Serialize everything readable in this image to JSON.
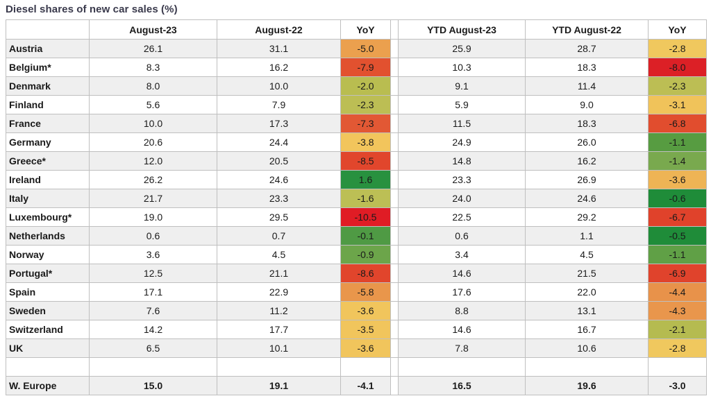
{
  "title": "Diesel shares of new car sales (%)",
  "colors": {
    "title_text": "#3a3a4c",
    "grid_line": "#bfbfbf",
    "band_fill": "#efefef",
    "cell_text": "#1a1a1a"
  },
  "chart_data": {
    "type": "table",
    "title": "Diesel shares of new car sales (%)",
    "columns": [
      "",
      "August-23",
      "August-22",
      "YoY",
      "YTD August-23",
      "YTD August-22",
      "YoY"
    ],
    "rows": [
      {
        "country": "Austria",
        "aug23": 26.1,
        "aug22": 31.1,
        "yoy1": -5.0,
        "yoy1_color": "#eba04e",
        "ytd23": 25.9,
        "ytd22": 28.7,
        "yoy2": -2.8,
        "yoy2_color": "#f0c85e"
      },
      {
        "country": "Belgium*",
        "aug23": 8.3,
        "aug22": 16.2,
        "yoy1": -7.9,
        "yoy1_color": "#e2512f",
        "ytd23": 10.3,
        "ytd22": 18.3,
        "yoy2": -8.0,
        "yoy2_color": "#dc2026"
      },
      {
        "country": "Denmark",
        "aug23": 8.0,
        "aug22": 10.0,
        "yoy1": -2.0,
        "yoy1_color": "#b9bd50",
        "ytd23": 9.1,
        "ytd22": 11.4,
        "yoy2": -2.3,
        "yoy2_color": "#bcbe54"
      },
      {
        "country": "Finland",
        "aug23": 5.6,
        "aug22": 7.9,
        "yoy1": -2.3,
        "yoy1_color": "#bcbe54",
        "ytd23": 5.9,
        "ytd22": 9.0,
        "yoy2": -3.1,
        "yoy2_color": "#f0c35a"
      },
      {
        "country": "France",
        "aug23": 10.0,
        "aug22": 17.3,
        "yoy1": -7.3,
        "yoy1_color": "#e25834",
        "ytd23": 11.5,
        "ytd22": 18.3,
        "yoy2": -6.8,
        "yoy2_color": "#e14d2e"
      },
      {
        "country": "Germany",
        "aug23": 20.6,
        "aug22": 24.4,
        "yoy1": -3.8,
        "yoy1_color": "#f2c55c",
        "ytd23": 24.9,
        "ytd22": 26.0,
        "yoy2": -1.1,
        "yoy2_color": "#579c41"
      },
      {
        "country": "Greece*",
        "aug23": 12.0,
        "aug22": 20.5,
        "yoy1": -8.5,
        "yoy1_color": "#e1462c",
        "ytd23": 14.8,
        "ytd22": 16.2,
        "yoy2": -1.4,
        "yoy2_color": "#79a94e"
      },
      {
        "country": "Ireland",
        "aug23": 26.2,
        "aug22": 24.6,
        "yoy1": 1.6,
        "yoy1_color": "#28913f",
        "ytd23": 23.3,
        "ytd22": 26.9,
        "yoy2": -3.6,
        "yoy2_color": "#eeb455"
      },
      {
        "country": "Italy",
        "aug23": 21.7,
        "aug22": 23.3,
        "yoy1": -1.6,
        "yoy1_color": "#bcbf55",
        "ytd23": 24.0,
        "ytd22": 24.6,
        "yoy2": -0.6,
        "yoy2_color": "#1f8c39"
      },
      {
        "country": "Luxembourg*",
        "aug23": 19.0,
        "aug22": 29.5,
        "yoy1": -10.5,
        "yoy1_color": "#e01c25",
        "ytd23": 22.5,
        "ytd22": 29.2,
        "yoy2": -6.7,
        "yoy2_color": "#e0422b"
      },
      {
        "country": "Netherlands",
        "aug23": 0.6,
        "aug22": 0.7,
        "yoy1": -0.1,
        "yoy1_color": "#4f9a44",
        "ytd23": 0.6,
        "ytd22": 1.1,
        "yoy2": -0.5,
        "yoy2_color": "#1f8c39"
      },
      {
        "country": "Norway",
        "aug23": 3.6,
        "aug22": 4.5,
        "yoy1": -0.9,
        "yoy1_color": "#6ca54a",
        "ytd23": 3.4,
        "ytd22": 4.5,
        "yoy2": -1.1,
        "yoy2_color": "#60a046"
      },
      {
        "country": "Portugal*",
        "aug23": 12.5,
        "aug22": 21.1,
        "yoy1": -8.6,
        "yoy1_color": "#e1452c",
        "ytd23": 14.6,
        "ytd22": 21.5,
        "yoy2": -6.9,
        "yoy2_color": "#e0432c"
      },
      {
        "country": "Spain",
        "aug23": 17.1,
        "aug22": 22.9,
        "yoy1": -5.8,
        "yoy1_color": "#e9964b",
        "ytd23": 17.6,
        "ytd22": 22.0,
        "yoy2": -4.4,
        "yoy2_color": "#e8924a"
      },
      {
        "country": "Sweden",
        "aug23": 7.6,
        "aug22": 11.2,
        "yoy1": -3.6,
        "yoy1_color": "#f1c55c",
        "ytd23": 8.8,
        "ytd22": 13.1,
        "yoy2": -4.3,
        "yoy2_color": "#e9964c"
      },
      {
        "country": "Switzerland",
        "aug23": 14.2,
        "aug22": 17.7,
        "yoy1": -3.5,
        "yoy1_color": "#f1c55c",
        "ytd23": 14.6,
        "ytd22": 16.7,
        "yoy2": -2.1,
        "yoy2_color": "#b5bb50"
      },
      {
        "country": "UK",
        "aug23": 6.5,
        "aug22": 10.1,
        "yoy1": -3.6,
        "yoy1_color": "#f1c55c",
        "ytd23": 7.8,
        "ytd22": 10.6,
        "yoy2": -2.8,
        "yoy2_color": "#f0c85e"
      }
    ],
    "total": {
      "country": "W. Europe",
      "aug23": 15.0,
      "aug22": 19.1,
      "yoy1": -4.1,
      "ytd23": 16.5,
      "ytd22": 19.6,
      "yoy2": -3.0
    },
    "layout": {
      "banded_rows": true,
      "heat_columns": [
        "YoY"
      ],
      "empty_row_before_total": true
    }
  }
}
